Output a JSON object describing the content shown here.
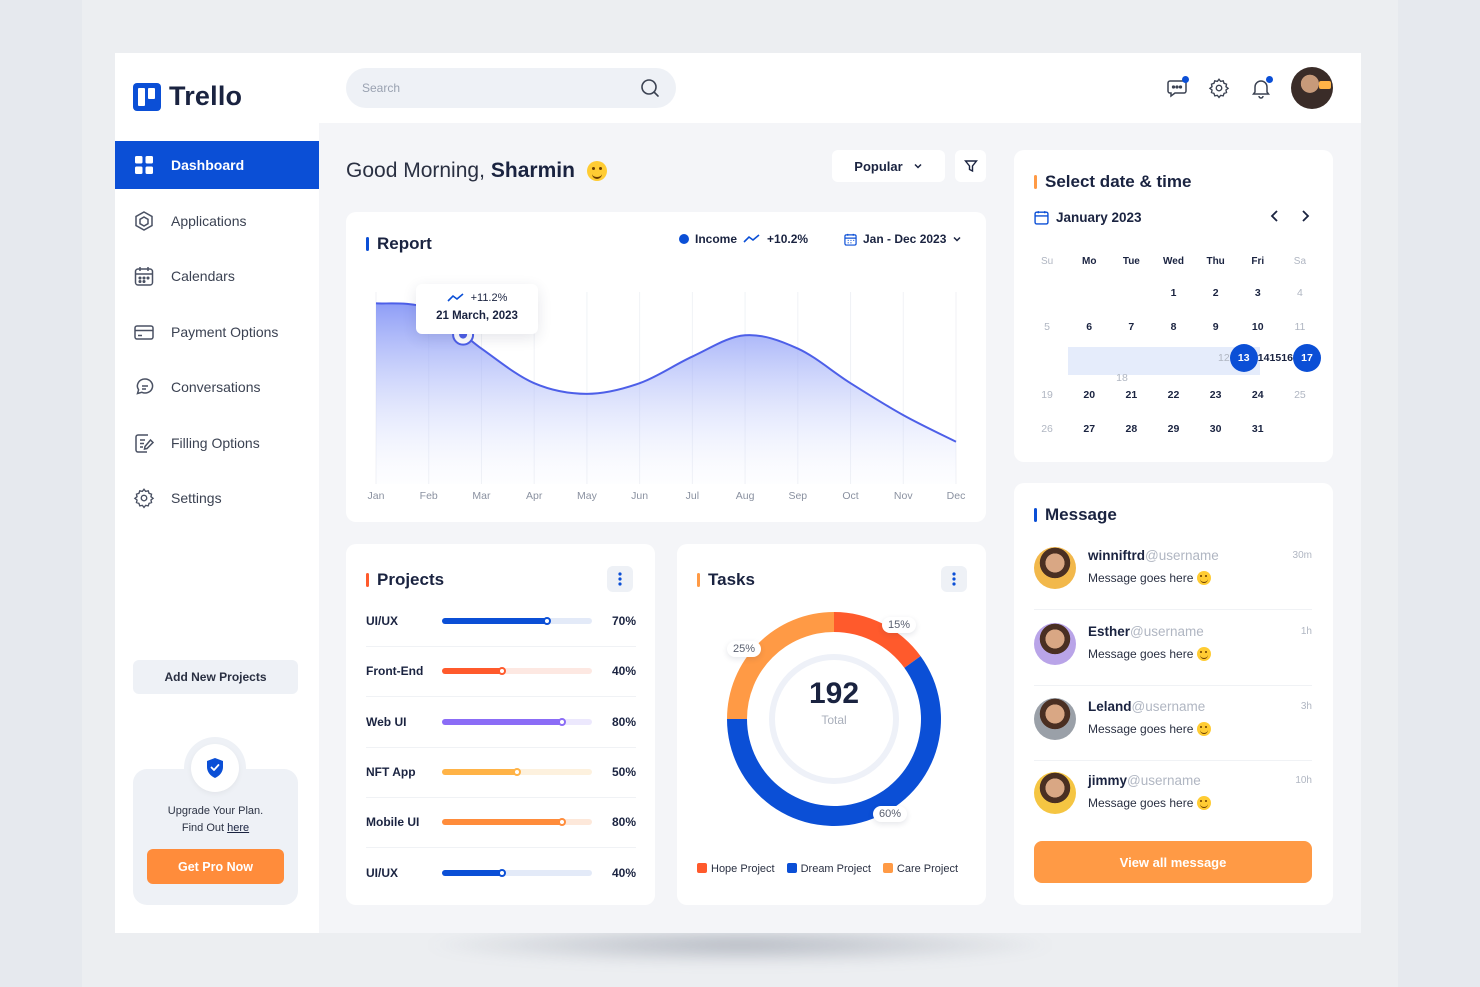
{
  "brand": {
    "name": "Trello",
    "accent": "#0b4fd6",
    "orange": "#ff8c3b"
  },
  "sidebar": {
    "items": [
      {
        "label": "Dashboard",
        "icon": "grid-icon",
        "active": true
      },
      {
        "label": "Applications",
        "icon": "cube-icon"
      },
      {
        "label": "Calendars",
        "icon": "calendar-icon"
      },
      {
        "label": "Payment Options",
        "icon": "card-icon"
      },
      {
        "label": "Conversations",
        "icon": "chat-icon"
      },
      {
        "label": "Filling Options",
        "icon": "edit-doc-icon"
      },
      {
        "label": "Settings",
        "icon": "gear-icon"
      }
    ],
    "add_project_label": "Add New Projects",
    "upgrade": {
      "line1": "Upgrade Your Plan.",
      "line2": "Find Out",
      "link": "here",
      "button": "Get Pro Now"
    }
  },
  "topbar": {
    "search_placeholder": "Search",
    "icons": [
      "message-icon",
      "gear-icon",
      "bell-icon"
    ]
  },
  "greeting": {
    "prefix": "Good Morning,",
    "name": "Sharmin"
  },
  "filters": {
    "sort_label": "Popular"
  },
  "report": {
    "title": "Report",
    "legend_label": "Income",
    "legend_change": "+10.2%",
    "date_range": "Jan - Dec 2023",
    "tooltip": {
      "change": "+11.2%",
      "date": "21 March, 2023"
    }
  },
  "chart_data": {
    "type": "area",
    "categories": [
      "Jan",
      "Feb",
      "Mar",
      "Apr",
      "May",
      "Jun",
      "Jul",
      "Aug",
      "Sep",
      "Oct",
      "Nov",
      "Dec"
    ],
    "series": [
      {
        "name": "Income",
        "values": [
          72,
          70,
          55,
          42,
          38,
          42,
          52,
          60,
          55,
          42,
          30,
          20
        ]
      }
    ],
    "ylim": [
      0,
      80
    ],
    "grid": "vertical",
    "highlight_index": 2
  },
  "projects": {
    "title": "Projects",
    "rows": [
      {
        "name": "UI/UX",
        "pct_label": "70%",
        "value": 0.7,
        "color": "#0b4fd6",
        "track": "#e3eaf8"
      },
      {
        "name": "Front-End",
        "pct_label": "40%",
        "value": 0.4,
        "color": "#ff5a2c",
        "track": "#fde8e2"
      },
      {
        "name": "Web UI",
        "pct_label": "80%",
        "value": 0.8,
        "color": "#8b6cf6",
        "track": "#ece8fd"
      },
      {
        "name": "NFT App",
        "pct_label": "50%",
        "value": 0.5,
        "color": "#ffb347",
        "track": "#fdf1de"
      },
      {
        "name": "Mobile UI",
        "pct_label": "80%",
        "value": 0.8,
        "color": "#ff8c3b",
        "track": "#fde8da"
      },
      {
        "name": "UI/UX",
        "pct_label": "40%",
        "value": 0.4,
        "color": "#0b4fd6",
        "track": "#e3eaf8"
      }
    ]
  },
  "tasks": {
    "title": "Tasks",
    "total": "192",
    "total_label": "Total",
    "segments": [
      {
        "name": "Hope Project",
        "value": 15,
        "label": "15%",
        "color": "#ff5a2c"
      },
      {
        "name": "Dream Project",
        "value": 60,
        "label": "60%",
        "color": "#0b4fd6"
      },
      {
        "name": "Care Project",
        "value": 25,
        "label": "25%",
        "color": "#ff9a45"
      }
    ]
  },
  "calendar": {
    "title": "Select date & time",
    "month": "January 2023",
    "weekdays": [
      "Su",
      "Mo",
      "Tue",
      "Wed",
      "Thu",
      "Fri",
      "Sa"
    ],
    "weeks": [
      [
        "",
        "",
        "",
        "1",
        "2",
        "3",
        "4"
      ],
      [
        "5",
        "6",
        "7",
        "8",
        "9",
        "10",
        "11"
      ],
      [
        "12",
        "13",
        "14",
        "15",
        "16",
        "17",
        "18"
      ],
      [
        "19",
        "20",
        "21",
        "22",
        "23",
        "24",
        "25"
      ],
      [
        "26",
        "27",
        "28",
        "29",
        "30",
        "31",
        ""
      ]
    ],
    "range_start": "13",
    "range_end": "17"
  },
  "messages": {
    "title": "Message",
    "items": [
      {
        "name": "winniftrd",
        "handle": "@username",
        "text": "Message goes here",
        "time": "30m",
        "avatar_bg": "#f2b84b"
      },
      {
        "name": "Esther",
        "handle": "@username",
        "text": "Message goes here",
        "time": "1h",
        "avatar_bg": "#b9a4e8"
      },
      {
        "name": "Leland",
        "handle": "@username",
        "text": "Message goes here",
        "time": "3h",
        "avatar_bg": "#9aa0a8"
      },
      {
        "name": "jimmy",
        "handle": "@username",
        "text": "Message goes here",
        "time": "10h",
        "avatar_bg": "#f5c542"
      }
    ],
    "view_all": "View all message"
  }
}
